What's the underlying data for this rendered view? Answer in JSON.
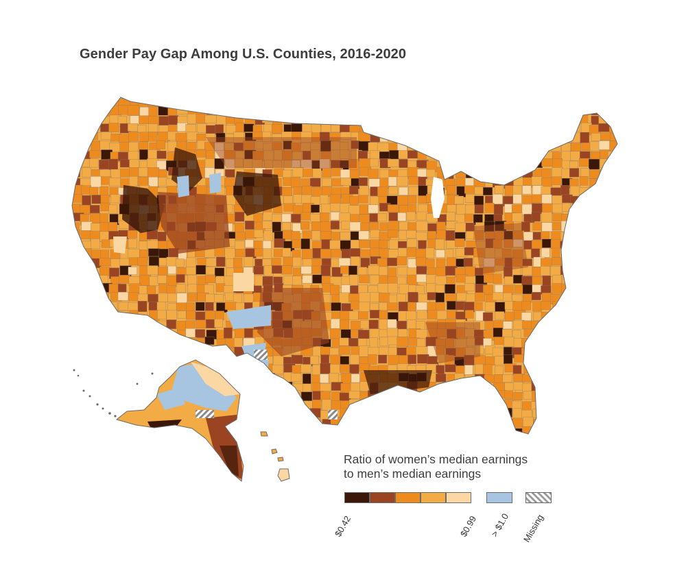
{
  "title": "Gender Pay Gap Among U.S. Counties, 2016-2020",
  "legend": {
    "title_line1": "Ratio of women’s median earnings",
    "title_line2": "to men’s median earnings",
    "classes": [
      {
        "color": "#3b1708"
      },
      {
        "color": "#9a4422"
      },
      {
        "color": "#ee8b1f"
      },
      {
        "color": "#f3ab45"
      },
      {
        "color": "#fbd7a4"
      }
    ],
    "above_one_color": "#a7c4e0",
    "missing_color": "#9b9b9b",
    "label_min": "$0.42",
    "label_max": "$0.99",
    "label_above": "> $1.0",
    "label_missing": "Missing"
  }
}
